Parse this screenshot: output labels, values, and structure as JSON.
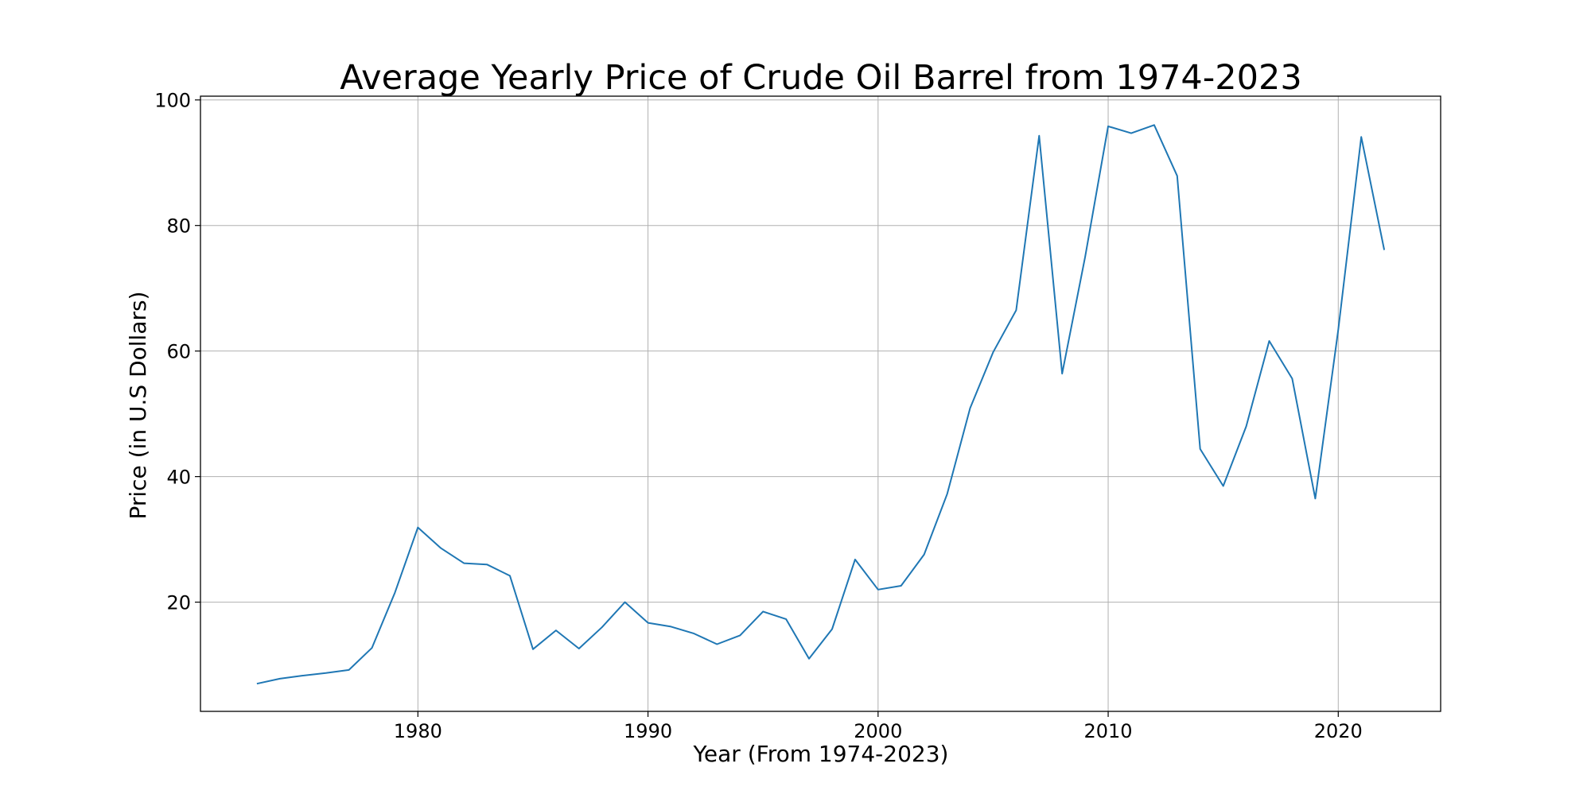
{
  "chart_data": {
    "type": "line",
    "title": "Average Yearly Price of Crude Oil Barrel from 1974-2023",
    "xlabel": "Year (From 1974-2023)",
    "ylabel": "Price (in U.S Dollars)",
    "x_ticks": [
      1980,
      1990,
      2000,
      2010,
      2020
    ],
    "y_ticks": [
      20,
      40,
      60,
      80,
      100
    ],
    "xlim": [
      1970.55,
      2024.45
    ],
    "ylim": [
      2.6,
      100.6
    ],
    "grid": true,
    "line_color": "#1f77b4",
    "series": [
      {
        "x": [
          1973,
          1974,
          1975,
          1976,
          1977,
          1978,
          1979,
          1980,
          1981,
          1982,
          1983,
          1984,
          1985,
          1986,
          1987,
          1988,
          1989,
          1990,
          1991,
          1992,
          1993,
          1994,
          1995,
          1996,
          1997,
          1998,
          1999,
          2000,
          2001,
          2002,
          2003,
          2004,
          2005,
          2006,
          2007,
          2008,
          2009,
          2010,
          2011,
          2012,
          2013,
          2014,
          2015,
          2016,
          2017,
          2018,
          2019,
          2020,
          2021,
          2022
        ],
        "values": [
          7.0,
          7.8,
          8.3,
          8.7,
          9.2,
          12.7,
          21.5,
          31.9,
          28.6,
          26.2,
          26.0,
          24.2,
          12.5,
          15.5,
          12.6,
          16.0,
          20.0,
          16.7,
          16.1,
          15.0,
          13.3,
          14.7,
          18.5,
          17.3,
          11.0,
          15.7,
          26.8,
          22.0,
          22.6,
          27.6,
          37.2,
          50.9,
          59.8,
          66.5,
          94.3,
          56.4,
          75.0,
          95.8,
          94.7,
          96.0,
          87.9,
          44.4,
          38.5,
          48.0,
          61.6,
          55.6,
          36.5,
          63.4,
          94.1,
          76.1
        ]
      }
    ]
  }
}
